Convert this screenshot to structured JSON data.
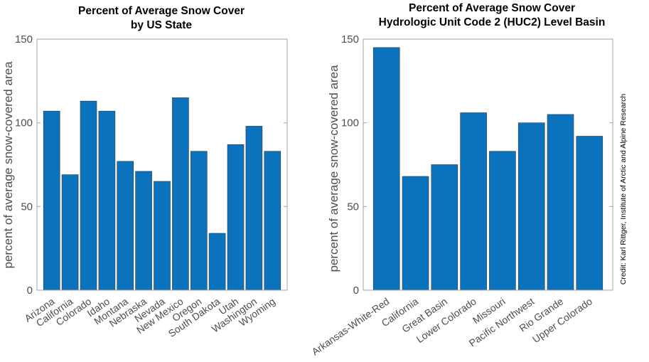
{
  "chart_data": [
    {
      "type": "bar",
      "title": [
        "Percent of Average Snow Cover",
        "by US State"
      ],
      "xlabel": "",
      "ylabel": "percent of average snow-covered area",
      "ylim": [
        0,
        150
      ],
      "yticks": [
        0,
        50,
        100,
        150
      ],
      "categories": [
        "Arizona",
        "California",
        "Colorado",
        "Idaho",
        "Montana",
        "Nebraska",
        "Nevada",
        "New Mexico",
        "Oregon",
        "South Dakota",
        "Utah",
        "Washington",
        "Wyoming"
      ],
      "values": [
        107,
        69,
        113,
        107,
        77,
        71,
        65,
        115,
        83,
        34,
        87,
        98,
        83
      ],
      "color": "#0b72bd"
    },
    {
      "type": "bar",
      "title": [
        "Percent of Average Snow Cover",
        "Hydrologic Unit Code 2 (HUC2) Level Basin"
      ],
      "xlabel": "",
      "ylabel": "percent of average snow-covered area",
      "ylim": [
        0,
        150
      ],
      "yticks": [
        0,
        50,
        100,
        150
      ],
      "categories": [
        "Arkansas-White-Red",
        "California",
        "Great Basin",
        "Lower Colorado",
        "Missouri",
        "Pacific Northwest",
        "Rio Grande",
        "Upper Colorado"
      ],
      "values": [
        145,
        68,
        75,
        106,
        83,
        100,
        105,
        92
      ],
      "color": "#0b72bd"
    }
  ],
  "credit": "Credit: Karl Rittger, Institute of Arctic and Alpine Research"
}
